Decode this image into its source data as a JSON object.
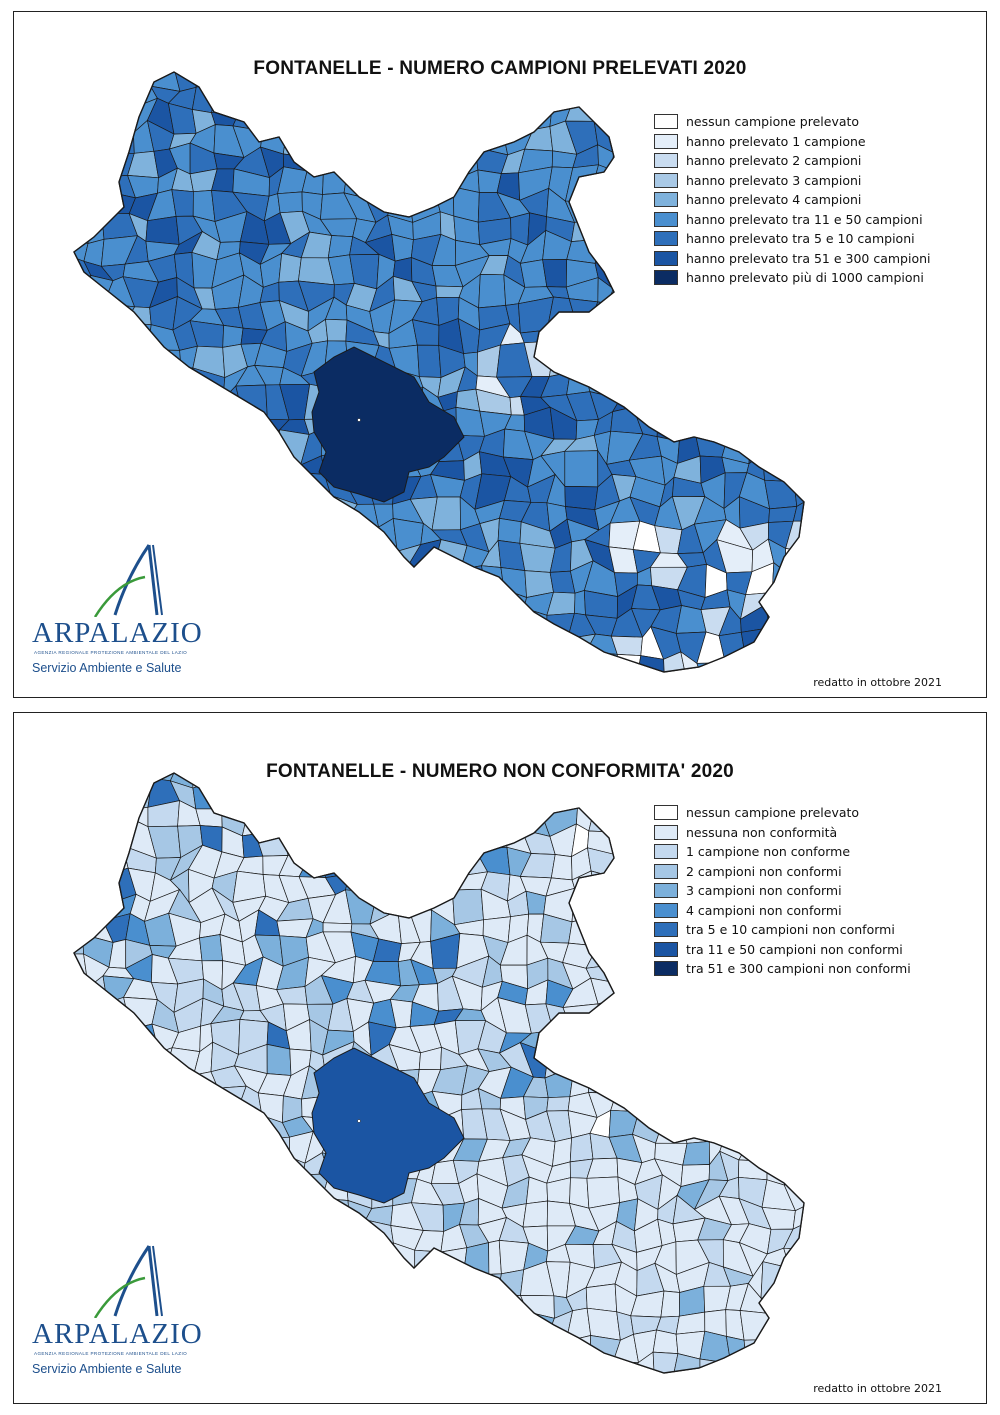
{
  "palette": {
    "outline": "#1a1a1a",
    "logo_blue": "#1d4f8c",
    "logo_green": "#3a9a3a"
  },
  "panels": [
    {
      "title": "FONTANELLE - NUMERO CAMPIONI PRELEVATI 2020",
      "legend": [
        {
          "label": "nessun campione prelevato",
          "color": "#ffffff"
        },
        {
          "label": "hanno prelevato 1 campione",
          "color": "#e4eef9"
        },
        {
          "label": "hanno prelevato 2 campioni",
          "color": "#c9dcf0"
        },
        {
          "label": "hanno prelevato 3 campioni",
          "color": "#a9c9e6"
        },
        {
          "label": "hanno prelevato 4 campioni",
          "color": "#7fb2dc"
        },
        {
          "label": "hanno prelevato tra 11 e 50 campioni",
          "color": "#4a8fcf"
        },
        {
          "label": "hanno prelevato tra 5 e 10 campioni",
          "color": "#2e6fba"
        },
        {
          "label": "hanno prelevato tra 51 e 300 campioni",
          "color": "#1b55a3"
        },
        {
          "label": "hanno prelevato più di 1000 campioni",
          "color": "#0b2c63"
        }
      ],
      "logo": {
        "name": "ARPALAZIO",
        "subtitle": "AGENZIA REGIONALE PROTEZIONE AMBIENTALE DEL LAZIO",
        "service": "Servizio Ambiente e Salute"
      },
      "note": "redatto in ottobre 2021"
    },
    {
      "title": "FONTANELLE - NUMERO NON CONFORMITA' 2020",
      "legend": [
        {
          "label": "nessun campione prelevato",
          "color": "#ffffff"
        },
        {
          "label": "nessuna non conformità",
          "color": "#deeaf7"
        },
        {
          "label": "1 campione non conforme",
          "color": "#c4d9ef"
        },
        {
          "label": "2 campioni non conformi",
          "color": "#a6c7e5"
        },
        {
          "label": "3 campioni non conformi",
          "color": "#7cb0db"
        },
        {
          "label": "4 campioni non conformi",
          "color": "#4a8fcf"
        },
        {
          "label": "tra 5 e 10 campioni non conformi",
          "color": "#2e6fba"
        },
        {
          "label": "tra 11 e 50 campioni non conformi",
          "color": "#1b55a3"
        },
        {
          "label": "tra 51 e 300 campioni non conformi",
          "color": "#0b2c63"
        }
      ],
      "logo": {
        "name": "ARPALAZIO",
        "subtitle": "AGENZIA REGIONALE PROTEZIONE AMBIENTALE DEL LAZIO",
        "service": "Servizio Ambiente e Salute"
      },
      "note": "redatto in ottobre 2021"
    }
  ]
}
